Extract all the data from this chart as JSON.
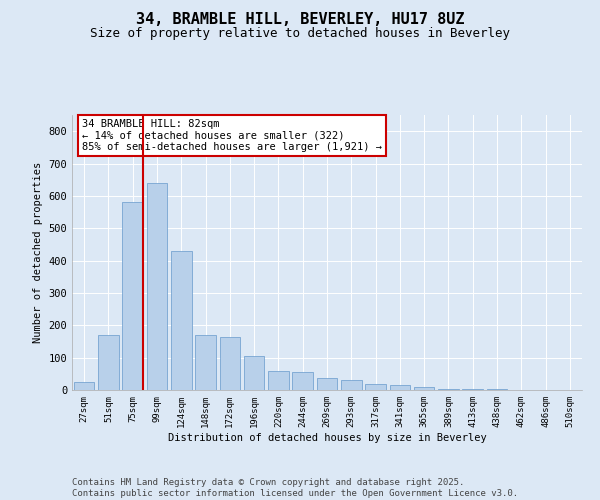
{
  "title_line1": "34, BRAMBLE HILL, BEVERLEY, HU17 8UZ",
  "title_line2": "Size of property relative to detached houses in Beverley",
  "xlabel": "Distribution of detached houses by size in Beverley",
  "ylabel": "Number of detached properties",
  "categories": [
    "27sqm",
    "51sqm",
    "75sqm",
    "99sqm",
    "124sqm",
    "148sqm",
    "172sqm",
    "196sqm",
    "220sqm",
    "244sqm",
    "269sqm",
    "293sqm",
    "317sqm",
    "341sqm",
    "365sqm",
    "389sqm",
    "413sqm",
    "438sqm",
    "462sqm",
    "486sqm",
    "510sqm"
  ],
  "values": [
    25,
    170,
    580,
    640,
    430,
    170,
    165,
    105,
    60,
    55,
    38,
    32,
    18,
    15,
    8,
    4,
    4,
    4,
    1,
    1,
    0
  ],
  "bar_color": "#b8d0ea",
  "bar_edge_color": "#6699cc",
  "vline_color": "#cc0000",
  "annotation_text": "34 BRAMBLE HILL: 82sqm\n← 14% of detached houses are smaller (322)\n85% of semi-detached houses are larger (1,921) →",
  "annotation_box_color": "#cc0000",
  "annotation_fill": "#ffffff",
  "ylim": [
    0,
    850
  ],
  "yticks": [
    0,
    100,
    200,
    300,
    400,
    500,
    600,
    700,
    800
  ],
  "background_color": "#dce8f5",
  "plot_bg_color": "#dce8f5",
  "footer_text": "Contains HM Land Registry data © Crown copyright and database right 2025.\nContains public sector information licensed under the Open Government Licence v3.0.",
  "grid_color": "#ffffff",
  "title_fontsize": 11,
  "subtitle_fontsize": 9,
  "annotation_fontsize": 7.5,
  "footer_fontsize": 6.5,
  "ylabel_fontsize": 7.5,
  "xlabel_fontsize": 7.5,
  "xtick_fontsize": 6.5,
  "ytick_fontsize": 7.5
}
